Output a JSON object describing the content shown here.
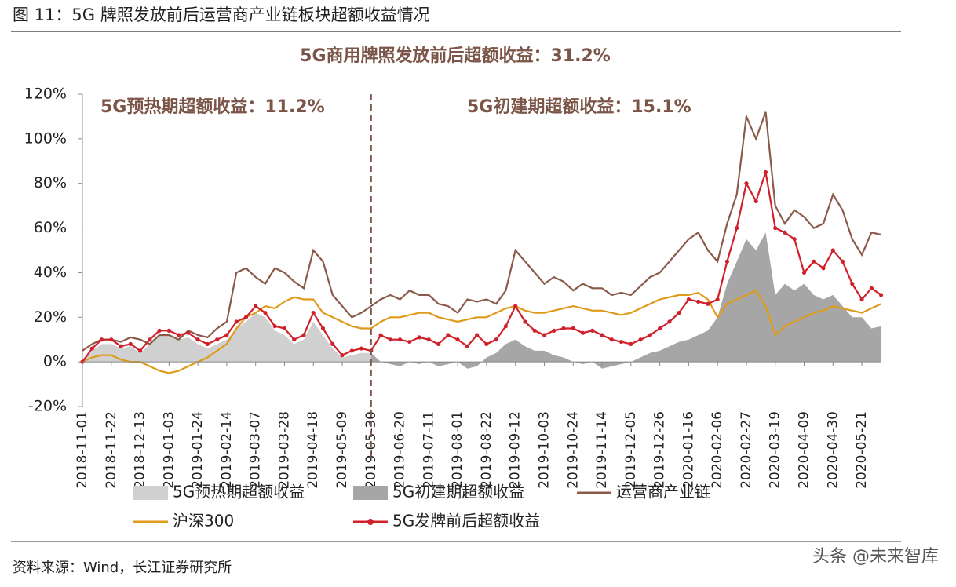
{
  "chart_data": {
    "type": "line",
    "title": "图 11：5G 牌照发放前后运营商产业链板块超额收益情况",
    "subtitle": "5G商用牌照发放前后超额收益：31.2%",
    "annotations": [
      "5G预热期超额收益：11.2%",
      "5G初建期超额收益：15.1%"
    ],
    "source": "资料来源：Wind，长江证券研究所",
    "watermark": "头条 @未来智库",
    "categories": [
      "2018-11-01",
      null,
      null,
      "2018-11-22",
      null,
      null,
      "2018-12-13",
      null,
      null,
      "2019-01-03",
      null,
      null,
      "2019-01-24",
      null,
      null,
      "2019-02-14",
      null,
      null,
      "2019-03-07",
      null,
      null,
      "2019-03-28",
      null,
      null,
      "2019-04-18",
      null,
      null,
      "2019-05-09",
      null,
      null,
      "2019-05-30",
      null,
      null,
      "2019-06-20",
      null,
      null,
      "2019-07-11",
      null,
      null,
      "2019-08-01",
      null,
      null,
      "2019-08-22",
      null,
      null,
      "2019-09-12",
      null,
      null,
      "2019-10-03",
      null,
      null,
      "2019-10-24",
      null,
      null,
      "2019-11-14",
      null,
      null,
      "2019-12-05",
      null,
      null,
      "2019-12-26",
      null,
      null,
      "2020-01-16",
      null,
      null,
      "2020-02-06",
      null,
      null,
      "2020-02-27",
      null,
      null,
      "2020-03-19",
      null,
      null,
      "2020-04-09",
      null,
      null,
      "2020-04-30",
      null,
      null,
      "2020-05-21",
      null,
      null
    ],
    "ylim": [
      -20,
      120
    ],
    "yticks": [
      {
        "value": -20,
        "label": "-20%"
      },
      {
        "value": 0,
        "label": "0%"
      },
      {
        "value": 20,
        "label": "20%"
      },
      {
        "value": 40,
        "label": "40%"
      },
      {
        "value": 60,
        "label": "60%"
      },
      {
        "value": 80,
        "label": "80%"
      },
      {
        "value": 100,
        "label": "100%"
      },
      {
        "value": 120,
        "label": "120%"
      }
    ],
    "series": [
      {
        "name": "5G预热期超额收益",
        "kind": "area",
        "color": "#d0d0d0",
        "values": [
          0,
          5,
          8,
          8,
          6,
          7,
          4,
          8,
          12,
          12,
          10,
          11,
          8,
          6,
          8,
          10,
          15,
          18,
          22,
          20,
          14,
          12,
          8,
          10,
          18,
          12,
          6,
          2,
          3,
          4,
          4,
          null,
          null,
          null,
          null,
          null,
          null,
          null,
          null,
          null,
          null,
          null,
          null,
          null,
          null,
          null,
          null,
          null,
          null,
          null,
          null,
          null,
          null,
          null,
          null,
          null,
          null,
          null,
          null,
          null,
          null,
          null,
          null,
          null,
          null,
          null,
          null,
          null,
          null,
          null,
          null,
          null,
          null,
          null,
          null,
          null,
          null,
          null,
          null,
          null,
          null,
          null,
          null,
          null
        ]
      },
      {
        "name": "5G初建期超额收益",
        "kind": "area",
        "color": "#a6a6a6",
        "values": [
          null,
          null,
          null,
          null,
          null,
          null,
          null,
          null,
          null,
          null,
          null,
          null,
          null,
          null,
          null,
          null,
          null,
          null,
          null,
          null,
          null,
          null,
          null,
          null,
          null,
          null,
          null,
          null,
          null,
          null,
          4,
          0,
          -1,
          -2,
          0,
          -1,
          0,
          -2,
          -1,
          0,
          -3,
          -2,
          2,
          4,
          8,
          10,
          7,
          5,
          5,
          3,
          2,
          0,
          -1,
          0,
          -3,
          -2,
          -1,
          0,
          2,
          4,
          5,
          7,
          9,
          10,
          12,
          14,
          20,
          35,
          45,
          55,
          50,
          58,
          30,
          35,
          32,
          35,
          30,
          28,
          30,
          25,
          20,
          20,
          15,
          16
        ]
      },
      {
        "name": "运营商产业链",
        "kind": "line",
        "color": "#8b5a4a",
        "values": [
          5,
          8,
          10,
          10,
          9,
          11,
          10,
          8,
          12,
          12,
          10,
          14,
          12,
          11,
          15,
          18,
          40,
          42,
          38,
          35,
          42,
          40,
          36,
          33,
          50,
          45,
          30,
          25,
          20,
          22,
          25,
          28,
          30,
          28,
          32,
          30,
          30,
          26,
          25,
          22,
          28,
          27,
          28,
          26,
          32,
          50,
          45,
          40,
          35,
          38,
          36,
          32,
          35,
          33,
          33,
          30,
          31,
          30,
          34,
          38,
          40,
          45,
          50,
          55,
          58,
          50,
          45,
          62,
          75,
          110,
          100,
          112,
          70,
          62,
          68,
          65,
          60,
          62,
          75,
          68,
          55,
          48,
          58,
          57
        ]
      },
      {
        "name": "沪深300",
        "kind": "line",
        "color": "#e09a1a",
        "values": [
          0,
          2,
          3,
          3,
          1,
          0,
          0,
          -2,
          -4,
          -5,
          -4,
          -2,
          0,
          2,
          5,
          8,
          15,
          20,
          22,
          25,
          24,
          27,
          29,
          28,
          28,
          22,
          20,
          18,
          16,
          15,
          15,
          18,
          20,
          20,
          21,
          22,
          22,
          20,
          19,
          18,
          19,
          20,
          20,
          22,
          24,
          25,
          23,
          22,
          22,
          23,
          24,
          25,
          24,
          23,
          23,
          22,
          21,
          22,
          24,
          26,
          28,
          29,
          30,
          30,
          31,
          28,
          20,
          26,
          28,
          30,
          32,
          25,
          12,
          16,
          18,
          20,
          22,
          23,
          25,
          24,
          23,
          22,
          24,
          26
        ]
      },
      {
        "name": "5G发牌前后超额收益",
        "kind": "marker-line",
        "color": "#d0202a",
        "values": [
          0,
          6,
          10,
          10,
          7,
          8,
          5,
          10,
          14,
          14,
          12,
          13,
          10,
          8,
          10,
          12,
          18,
          20,
          25,
          22,
          16,
          15,
          10,
          12,
          22,
          15,
          8,
          3,
          5,
          6,
          5,
          12,
          10,
          10,
          9,
          11,
          10,
          8,
          12,
          10,
          7,
          12,
          8,
          10,
          16,
          25,
          18,
          14,
          12,
          14,
          15,
          15,
          13,
          14,
          12,
          10,
          9,
          8,
          10,
          12,
          15,
          18,
          22,
          28,
          27,
          26,
          28,
          45,
          60,
          80,
          72,
          85,
          60,
          58,
          55,
          40,
          45,
          42,
          50,
          45,
          35,
          28,
          33,
          30
        ]
      }
    ]
  }
}
